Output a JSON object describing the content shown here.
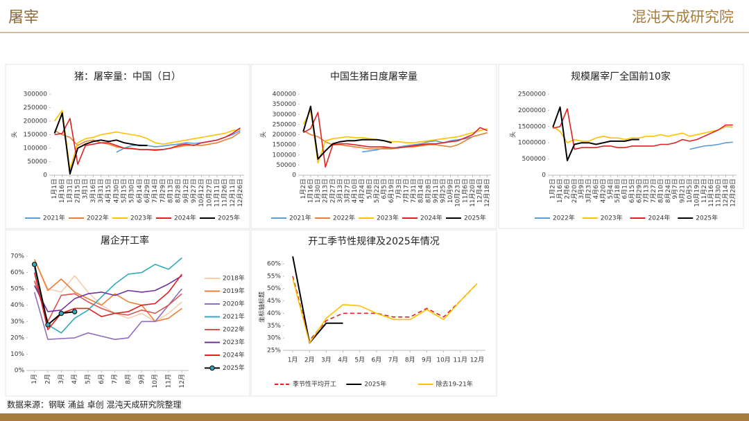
{
  "header": {
    "title": "屠宰",
    "logo": "混沌天成研究院"
  },
  "footer": {
    "source": "数据来源：钢联 涌益 卓创 混沌天成研究院整理"
  },
  "chart_data": [
    {
      "type": "line",
      "title": "猪：屠宰量：中国（日）",
      "y_label": "头",
      "legend": "bottom",
      "categories": [
        "1月1日",
        "1月16日",
        "1月31日",
        "2月15日",
        "3月1日",
        "3月16日",
        "3月31日",
        "4月15日",
        "4月30日",
        "5月15日",
        "5月30日",
        "6月14日",
        "6月29日",
        "7月14日",
        "7月29日",
        "8月13日",
        "8月28日",
        "9月12日",
        "9月27日",
        "10月12日",
        "10月27日",
        "11月11日",
        "11月26日",
        "12月11日",
        "12月26日"
      ],
      "ylim": [
        0,
        300000
      ],
      "yticks": [
        0,
        50000,
        100000,
        150000,
        200000,
        250000,
        300000
      ],
      "series": [
        {
          "name": "2021年",
          "color": "#5b9bd5",
          "values": [
            null,
            null,
            null,
            null,
            null,
            null,
            null,
            null,
            85000,
            100000,
            110000,
            112000,
            110000,
            105000,
            108000,
            112000,
            115000,
            120000,
            118000,
            120000,
            125000,
            130000,
            140000,
            150000,
            165000
          ]
        },
        {
          "name": "2022年",
          "color": "#ed7d31",
          "values": [
            165000,
            150000,
            140000,
            110000,
            125000,
            130000,
            120000,
            115000,
            105000,
            100000,
            100000,
            95000,
            95000,
            95000,
            95000,
            100000,
            105000,
            110000,
            112000,
            110000,
            115000,
            120000,
            130000,
            140000,
            160000
          ]
        },
        {
          "name": "2023年",
          "color": "#ffc000",
          "values": [
            200000,
            240000,
            20000,
            120000,
            135000,
            140000,
            150000,
            155000,
            160000,
            155000,
            150000,
            145000,
            135000,
            120000,
            115000,
            120000,
            125000,
            130000,
            135000,
            140000,
            145000,
            150000,
            155000,
            165000,
            170000
          ]
        },
        {
          "name": "2024年",
          "color": "#e02020",
          "values": [
            150000,
            155000,
            210000,
            40000,
            110000,
            115000,
            120000,
            120000,
            110000,
            100000,
            98000,
            95000,
            95000,
            92000,
            95000,
            100000,
            110000,
            115000,
            110000,
            120000,
            125000,
            130000,
            140000,
            155000,
            175000
          ]
        },
        {
          "name": "2025年",
          "color": "#000000",
          "values": [
            155000,
            230000,
            5000,
            100000,
            115000,
            125000,
            130000,
            125000,
            130000,
            120000,
            115000,
            110000,
            110000,
            null,
            null,
            null,
            null,
            null,
            null,
            null,
            null,
            null,
            null,
            null,
            null
          ]
        }
      ]
    },
    {
      "type": "line",
      "title": "中国生猪日度屠宰量",
      "y_label": "头",
      "legend": "bottom",
      "categories": [
        "1月2日",
        "1月16日",
        "1月30日",
        "2月13日",
        "2月27日",
        "3月13日",
        "3月27日",
        "4月10日",
        "4月24日",
        "5月8日",
        "5月22日",
        "6月5日",
        "6月19日",
        "7月3日",
        "7月17日",
        "7月31日",
        "8月14日",
        "8月28日",
        "9月11日",
        "9月25日",
        "10月9日",
        "10月23日",
        "11月6日",
        "11月20日",
        "12月4日",
        "12月18日"
      ],
      "ylim": [
        0,
        400000
      ],
      "yticks": [
        0,
        50000,
        100000,
        150000,
        200000,
        250000,
        300000,
        350000,
        400000
      ],
      "series": [
        {
          "name": "2021年",
          "color": "#5b9bd5",
          "values": [
            null,
            null,
            null,
            null,
            null,
            null,
            null,
            null,
            115000,
            120000,
            125000,
            135000,
            130000,
            140000,
            145000,
            150000,
            155000,
            165000,
            170000,
            160000,
            170000,
            175000,
            180000,
            190000,
            200000,
            210000
          ]
        },
        {
          "name": "2022年",
          "color": "#ed7d31",
          "values": [
            220000,
            200000,
            190000,
            165000,
            150000,
            150000,
            145000,
            140000,
            135000,
            130000,
            130000,
            130000,
            130000,
            135000,
            140000,
            140000,
            145000,
            150000,
            150000,
            145000,
            140000,
            150000,
            170000,
            190000,
            200000,
            210000
          ]
        },
        {
          "name": "2023年",
          "color": "#ffc000",
          "values": [
            250000,
            320000,
            60000,
            170000,
            180000,
            185000,
            190000,
            185000,
            185000,
            180000,
            175000,
            170000,
            165000,
            165000,
            160000,
            160000,
            165000,
            170000,
            175000,
            180000,
            185000,
            190000,
            200000,
            210000,
            220000,
            230000
          ]
        },
        {
          "name": "2024年",
          "color": "#e02020",
          "values": [
            210000,
            230000,
            310000,
            40000,
            150000,
            155000,
            155000,
            150000,
            145000,
            140000,
            140000,
            140000,
            135000,
            135000,
            140000,
            145000,
            150000,
            155000,
            155000,
            160000,
            165000,
            170000,
            185000,
            200000,
            235000,
            220000
          ]
        },
        {
          "name": "2025年",
          "color": "#000000",
          "values": [
            215000,
            340000,
            80000,
            120000,
            155000,
            165000,
            170000,
            170000,
            175000,
            175000,
            175000,
            170000,
            160000,
            null,
            null,
            null,
            null,
            null,
            null,
            null,
            null,
            null,
            null,
            null,
            null,
            null
          ]
        }
      ]
    },
    {
      "type": "line",
      "title": "规模屠宰厂全国前10家",
      "y_label": "头",
      "legend": "bottom",
      "categories": [
        "1月2日",
        "1月16日",
        "2月6日",
        "2月20日",
        "3月9日",
        "3月23日",
        "4月6日",
        "4月20日",
        "5月4日",
        "5月18日",
        "6月1日",
        "6月15日",
        "6月29日",
        "7月13日",
        "7月27日",
        "8月10日",
        "8月24日",
        "9月7日",
        "9月21日",
        "10月5日",
        "10月19日",
        "11月2日",
        "11月16日",
        "11月30日",
        "12月14日",
        "12月28日"
      ],
      "ylim": [
        0,
        2500000
      ],
      "yticks": [
        0,
        500000,
        1000000,
        1500000,
        2000000,
        2500000
      ],
      "series": [
        {
          "name": "2022年",
          "color": "#5b9bd5",
          "values": [
            null,
            null,
            null,
            null,
            null,
            null,
            null,
            null,
            null,
            null,
            null,
            null,
            null,
            null,
            null,
            null,
            null,
            null,
            null,
            800000,
            850000,
            900000,
            920000,
            950000,
            1000000,
            1020000
          ]
        },
        {
          "name": "2023年",
          "color": "#ffc000",
          "values": [
            1500000,
            1350000,
            1000000,
            1100000,
            1050000,
            1050000,
            1150000,
            1200000,
            1150000,
            1150000,
            1100000,
            1150000,
            1150000,
            1200000,
            1200000,
            1250000,
            1200000,
            1250000,
            1300000,
            1200000,
            1250000,
            1300000,
            1350000,
            1400000,
            1500000,
            1480000
          ]
        },
        {
          "name": "2024年",
          "color": "#e02020",
          "values": [
            1450000,
            1500000,
            2050000,
            800000,
            850000,
            850000,
            850000,
            900000,
            900000,
            850000,
            850000,
            900000,
            900000,
            900000,
            900000,
            950000,
            950000,
            1000000,
            1100000,
            1050000,
            1100000,
            1200000,
            1300000,
            1400000,
            1550000,
            1550000
          ]
        },
        {
          "name": "2025年",
          "color": "#000000",
          "values": [
            1480000,
            2100000,
            450000,
            950000,
            1000000,
            1000000,
            950000,
            1000000,
            1050000,
            1050000,
            1050000,
            1100000,
            1100000,
            null,
            null,
            null,
            null,
            null,
            null,
            null,
            null,
            null,
            null,
            null,
            null,
            null
          ]
        }
      ]
    },
    {
      "type": "line",
      "title": "屠企开工率",
      "legend": "right",
      "categories": [
        "1月",
        "2月",
        "3月",
        "4月",
        "5月",
        "6月",
        "7月",
        "8月",
        "9月",
        "10月",
        "11月",
        "12月"
      ],
      "ylim": [
        0,
        70
      ],
      "yticks": [
        {
          "value": 0,
          "label": "0%"
        },
        {
          "value": 10,
          "label": "10%"
        },
        {
          "value": 20,
          "label": "20%"
        },
        {
          "value": 30,
          "label": "30%"
        },
        {
          "value": 40,
          "label": "40%"
        },
        {
          "value": 50,
          "label": "50%"
        },
        {
          "value": 60,
          "label": "60%"
        },
        {
          "value": 70,
          "label": "70%"
        }
      ],
      "series": [
        {
          "name": "2018年",
          "color": "#f8cbad",
          "values": [
            68,
            50,
            48,
            58,
            48,
            40,
            35,
            32,
            35,
            30,
            35,
            42
          ]
        },
        {
          "name": "2019年",
          "color": "#ed7d31",
          "values": [
            68,
            49,
            56,
            48,
            44,
            40,
            47,
            42,
            40,
            30,
            32,
            38
          ]
        },
        {
          "name": "2020年",
          "color": "#8e6cc0",
          "values": [
            48,
            19,
            19.5,
            20,
            23,
            21,
            19,
            20,
            30,
            30,
            40,
            50
          ]
        },
        {
          "name": "2021年",
          "color": "#31a9b8",
          "values": [
            63,
            28,
            23,
            32,
            37,
            45,
            53,
            59,
            60,
            65,
            62,
            69
          ]
        },
        {
          "name": "2022年",
          "color": "#d9534f",
          "values": [
            55,
            30,
            46,
            47,
            42,
            38,
            35,
            34,
            37,
            35,
            40,
            47
          ]
        },
        {
          "name": "2023年",
          "color": "#7030a0",
          "values": [
            52,
            36,
            37,
            44,
            47,
            48,
            46,
            49,
            48,
            49,
            53,
            58
          ]
        },
        {
          "name": "2024年",
          "color": "#e02020",
          "values": [
            60,
            25,
            35,
            38,
            38,
            33,
            35,
            36,
            40,
            41,
            48,
            59
          ]
        },
        {
          "name": "2025年",
          "color": "#000000",
          "marker_color": "#31a9b8",
          "values": [
            65,
            28,
            35,
            36,
            null,
            null,
            null,
            null,
            null,
            null,
            null,
            null
          ]
        }
      ]
    },
    {
      "type": "line",
      "title": "开工季节性规律及2025年情况",
      "y_label": "坐标轴标题",
      "legend": "bottom",
      "categories": [
        "1月",
        "2月",
        "3月",
        "4月",
        "5月",
        "6月",
        "7月",
        "8月",
        "9月",
        "10月",
        "11月",
        "12月"
      ],
      "ylim": [
        25,
        60
      ],
      "yticks": [
        {
          "value": 25,
          "label": "25%"
        },
        {
          "value": 30,
          "label": "30%"
        },
        {
          "value": 35,
          "label": "35%"
        },
        {
          "value": 40,
          "label": "40%"
        },
        {
          "value": 45,
          "label": "45%"
        },
        {
          "value": 50,
          "label": "50%"
        },
        {
          "value": 55,
          "label": "55%"
        },
        {
          "value": 60,
          "label": "60%"
        }
      ],
      "series": [
        {
          "name": "季节性平均开工",
          "color": "#e02020",
          "line_style": "dashed",
          "values": [
            55,
            29,
            37,
            40,
            40,
            40,
            38.5,
            38.5,
            42,
            38.5,
            45,
            52
          ]
        },
        {
          "name": "2025年",
          "color": "#000000",
          "values": [
            63,
            28,
            36,
            36,
            null,
            null,
            null,
            null,
            null,
            null,
            null,
            null
          ]
        },
        {
          "name": "除去19-21年",
          "color": "#ffc000",
          "values": [
            54,
            28,
            38,
            43.5,
            43,
            40,
            37.5,
            37.5,
            41.5,
            37.5,
            45,
            52
          ]
        }
      ]
    }
  ]
}
